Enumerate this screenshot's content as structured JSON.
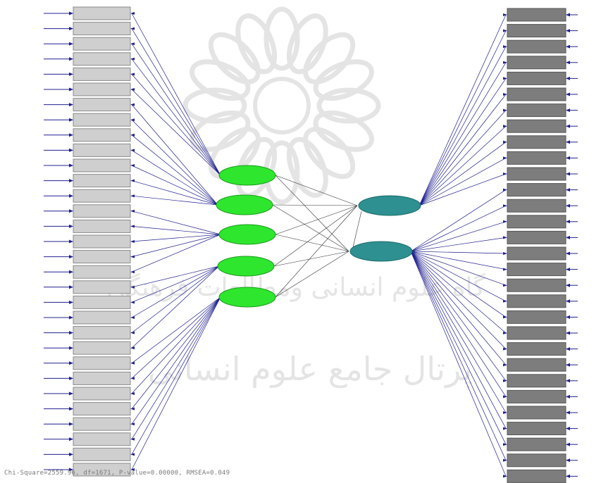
{
  "colors": {
    "left_box_fill": "#cfcfcf",
    "left_box_stroke": "#8a8a8a",
    "right_box_fill": "#7d7d7d",
    "right_box_stroke": "#555555",
    "latent_left_fill": "#2ee62e",
    "latent_right_fill": "#2e9090",
    "path_color": "#1f1f8f",
    "label_color": "#9a9a9a",
    "watermark_color": "#e4e4e4"
  },
  "left_indicators": [
    {
      "label": "",
      "error": ""
    },
    {
      "label": "",
      "error": ""
    },
    {
      "label": "",
      "error": ""
    },
    {
      "label": "",
      "error": ""
    },
    {
      "label": "",
      "error": ""
    },
    {
      "label": "",
      "error": ""
    },
    {
      "label": "",
      "error": ""
    },
    {
      "label": "",
      "error": ""
    },
    {
      "label": "",
      "error": ""
    },
    {
      "label": "",
      "error": ""
    },
    {
      "label": "",
      "error": ""
    },
    {
      "label": "",
      "error": ""
    },
    {
      "label": "",
      "error": ""
    },
    {
      "label": "",
      "error": ""
    },
    {
      "label": "",
      "error": ""
    },
    {
      "label": "",
      "error": ""
    },
    {
      "label": "",
      "error": ""
    },
    {
      "label": "",
      "error": ""
    },
    {
      "label": "",
      "error": ""
    },
    {
      "label": "",
      "error": ""
    },
    {
      "label": "",
      "error": ""
    },
    {
      "label": "",
      "error": ""
    },
    {
      "label": "",
      "error": ""
    },
    {
      "label": "",
      "error": ""
    },
    {
      "label": "",
      "error": ""
    },
    {
      "label": "",
      "error": ""
    },
    {
      "label": "",
      "error": ""
    },
    {
      "label": "",
      "error": ""
    },
    {
      "label": "",
      "error": ""
    },
    {
      "label": "",
      "error": ""
    },
    {
      "label": "",
      "error": ""
    }
  ],
  "right_indicators": [
    {
      "label": "",
      "error": ""
    },
    {
      "label": "",
      "error": ""
    },
    {
      "label": "",
      "error": ""
    },
    {
      "label": "",
      "error": ""
    },
    {
      "label": "",
      "error": ""
    },
    {
      "label": "",
      "error": ""
    },
    {
      "label": "",
      "error": ""
    },
    {
      "label": "",
      "error": ""
    },
    {
      "label": "",
      "error": ""
    },
    {
      "label": "",
      "error": ""
    },
    {
      "label": "",
      "error": ""
    },
    {
      "label": "",
      "error": ""
    },
    {
      "label": "",
      "error": ""
    },
    {
      "label": "",
      "error": ""
    },
    {
      "label": "",
      "error": ""
    },
    {
      "label": "",
      "error": ""
    },
    {
      "label": "",
      "error": ""
    },
    {
      "label": "",
      "error": ""
    },
    {
      "label": "",
      "error": ""
    },
    {
      "label": "",
      "error": ""
    },
    {
      "label": "",
      "error": ""
    },
    {
      "label": "",
      "error": ""
    },
    {
      "label": "",
      "error": ""
    },
    {
      "label": "",
      "error": ""
    },
    {
      "label": "",
      "error": ""
    },
    {
      "label": "",
      "error": ""
    },
    {
      "label": "",
      "error": ""
    },
    {
      "label": "",
      "error": ""
    },
    {
      "label": "",
      "error": ""
    },
    {
      "label": "",
      "error": ""
    }
  ],
  "left_latents": [
    {
      "label": ""
    },
    {
      "label": ""
    },
    {
      "label": ""
    },
    {
      "label": ""
    },
    {
      "label": ""
    }
  ],
  "right_latents": [
    {
      "label": ""
    },
    {
      "label": ""
    }
  ],
  "fit_statistics": "Chi-Square=2559.96, df=1671, P-value=0.00000, RMSEA=0.049",
  "watermark": {
    "line1": "گاه علوم انسانی ومطالعات فرهنگی",
    "line2": "پرتال جامع علوم انسانی"
  }
}
